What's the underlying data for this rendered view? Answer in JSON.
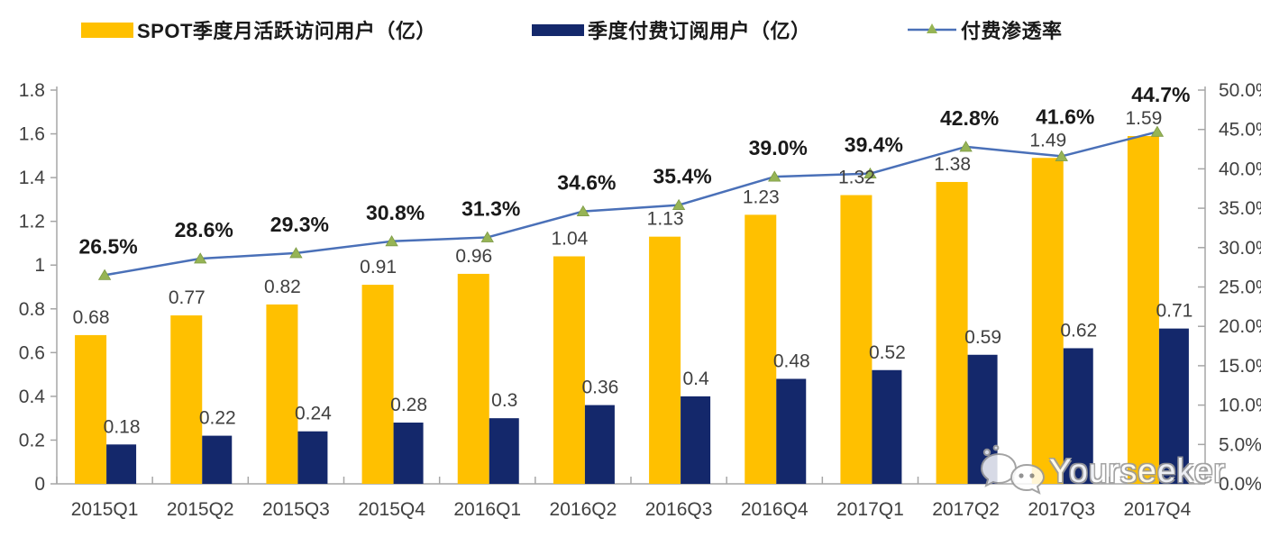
{
  "legend": {
    "items": [
      {
        "label": "SPOT季度月活跃访问用户（亿）",
        "swatch": "bar",
        "color": "#FFC000"
      },
      {
        "label": "季度付费订阅用户（亿）",
        "swatch": "bar",
        "color": "#14286B"
      },
      {
        "label": "付费渗透率",
        "swatch": "line-marker",
        "color": "#4A70B8",
        "marker_color": "#96B455"
      }
    ]
  },
  "watermark": {
    "text": "Yourseeker",
    "icon": "wechat-icon"
  },
  "chart_data": {
    "type": "bar",
    "subtype": "combo-bar-line",
    "categories": [
      "2015Q1",
      "2015Q2",
      "2015Q3",
      "2015Q4",
      "2016Q1",
      "2016Q2",
      "2016Q3",
      "2016Q4",
      "2017Q1",
      "2017Q2",
      "2017Q3",
      "2017Q4"
    ],
    "series": [
      {
        "name": "SPOT季度月活跃访问用户（亿）",
        "type": "bar",
        "yaxis": "left",
        "color": "#FFC000",
        "values": [
          0.68,
          0.77,
          0.82,
          0.91,
          0.96,
          1.04,
          1.13,
          1.23,
          1.32,
          1.38,
          1.49,
          1.59
        ]
      },
      {
        "name": "季度付费订阅用户（亿）",
        "type": "bar",
        "yaxis": "left",
        "color": "#14286B",
        "values": [
          0.18,
          0.22,
          0.24,
          0.28,
          0.3,
          0.36,
          0.4,
          0.48,
          0.52,
          0.59,
          0.62,
          0.71
        ]
      },
      {
        "name": "付费渗透率",
        "type": "line",
        "yaxis": "right",
        "color": "#4A70B8",
        "marker": "triangle",
        "marker_color": "#96B455",
        "unit": "%",
        "values": [
          26.5,
          28.6,
          29.3,
          30.8,
          31.3,
          34.6,
          35.4,
          39.0,
          39.4,
          42.8,
          41.6,
          44.7
        ]
      }
    ],
    "left_axis": {
      "min": 0,
      "max": 1.8,
      "step": 0.2,
      "tick_labels": [
        "0",
        "0.2",
        "0.4",
        "0.6",
        "0.8",
        "1",
        "1.2",
        "1.4",
        "1.6",
        "1.8"
      ]
    },
    "right_axis": {
      "min": 0,
      "max": 50,
      "step": 5,
      "tick_labels": [
        "0.0%",
        "5.0%",
        "10.0%",
        "15.0%",
        "20.0%",
        "25.0%",
        "30.0%",
        "35.0%",
        "40.0%",
        "45.0%",
        "50.0%"
      ]
    },
    "grid": false,
    "legend_position": "top",
    "data_labels": true,
    "colors": {
      "axis": "#A6A6A6",
      "tick_text": "#404040",
      "value_label": "#404040",
      "pct_label": "#1a1a1a"
    }
  }
}
